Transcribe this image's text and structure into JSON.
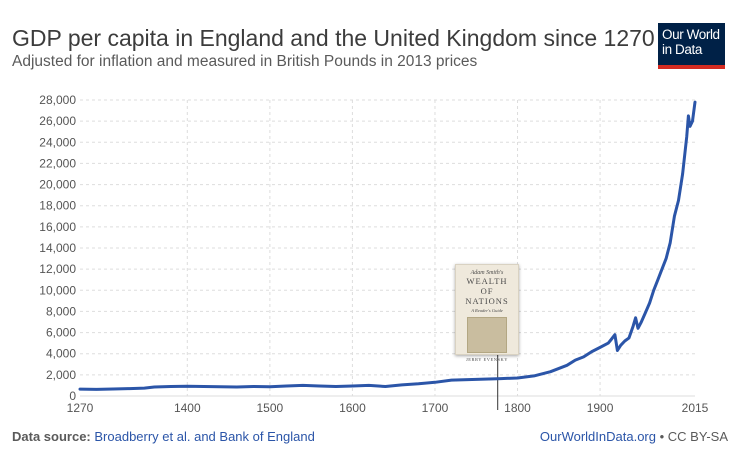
{
  "header": {
    "title": "GDP per capita in England and the United Kingdom since 1270",
    "subtitle": "Adjusted for inflation and measured in British Pounds in 2013 prices"
  },
  "logo": {
    "line1": "Our World",
    "line2": "in Data"
  },
  "footer": {
    "source_label": "Data source:",
    "source_link": "Broadberry et al. and Bank of England",
    "site_link": "OurWorldInData.org",
    "license": "• CC BY-SA"
  },
  "annotation": {
    "year": 1776,
    "book": {
      "author": "Adam Smith's",
      "title_line1": "WEALTH",
      "title_line2": "OF",
      "title_line3": "NATIONS",
      "subtitle": "A Reader's Guide",
      "editor": "JERRY EVENSKY"
    }
  },
  "colors": {
    "line": "#2b55a8",
    "grid": "#dddddd"
  },
  "chart_data": {
    "type": "line",
    "title": "GDP per capita in England and the United Kingdom since 1270",
    "subtitle": "Adjusted for inflation and measured in British Pounds in 2013 prices",
    "xlim": [
      1270,
      2015
    ],
    "ylim": [
      0,
      28000
    ],
    "x_ticks": [
      1270,
      1400,
      1500,
      1600,
      1700,
      1800,
      1900,
      2015
    ],
    "y_ticks": [
      0,
      2000,
      4000,
      6000,
      8000,
      10000,
      12000,
      14000,
      16000,
      18000,
      20000,
      22000,
      24000,
      26000,
      28000
    ],
    "grid": true,
    "series": [
      {
        "x": [
          1270,
          1290,
          1310,
          1330,
          1348,
          1360,
          1380,
          1400,
          1420,
          1440,
          1460,
          1480,
          1500,
          1520,
          1540,
          1560,
          1580,
          1600,
          1620,
          1640,
          1660,
          1680,
          1700,
          1720,
          1740,
          1760,
          1780,
          1800,
          1820,
          1840,
          1860,
          1870,
          1880,
          1890,
          1900,
          1910,
          1913,
          1918,
          1921,
          1925,
          1930,
          1935,
          1940,
          1943,
          1946,
          1950,
          1955,
          1960,
          1965,
          1970,
          1975,
          1980,
          1985,
          1990,
          1995,
          2000,
          2005,
          2007,
          2009,
          2012,
          2015
        ],
        "y": [
          650,
          620,
          660,
          700,
          750,
          850,
          900,
          930,
          900,
          870,
          850,
          900,
          880,
          950,
          1000,
          950,
          900,
          950,
          1000,
          900,
          1050,
          1150,
          1300,
          1500,
          1550,
          1600,
          1650,
          1700,
          1900,
          2300,
          2900,
          3400,
          3700,
          4200,
          4600,
          5000,
          5300,
          5800,
          4300,
          4800,
          5200,
          5500,
          6600,
          7400,
          6400,
          7000,
          7900,
          8800,
          10000,
          11000,
          12000,
          13000,
          14500,
          17000,
          18500,
          21000,
          24500,
          26500,
          25500,
          26000,
          27800
        ]
      }
    ]
  }
}
